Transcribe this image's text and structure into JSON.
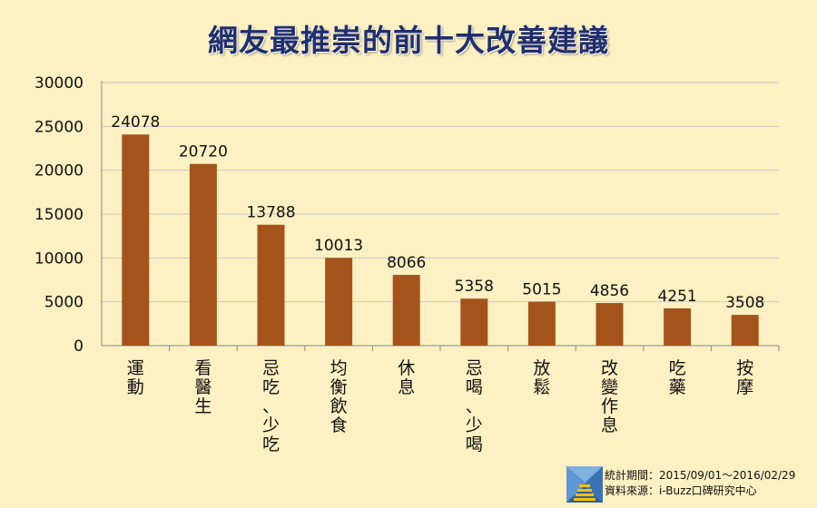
{
  "chart_data": {
    "type": "bar",
    "title": "網友最推崇的前十大改善建議",
    "categories": [
      "運動",
      "看醫生",
      "忌吃、少吃",
      "均衡飲食",
      "休息",
      "忌喝、少喝",
      "放鬆",
      "改變作息",
      "吃藥",
      "按摩"
    ],
    "values": [
      24078,
      20720,
      13788,
      10013,
      8066,
      5358,
      5015,
      4856,
      4251,
      3508
    ],
    "ylim": [
      0,
      30000
    ],
    "yticks": [
      0,
      5000,
      10000,
      15000,
      20000,
      25000,
      30000
    ],
    "grid": true,
    "bar_color": "#a4541a",
    "grid_color": "#c8c8c8"
  },
  "footer": {
    "period": "統計期間：2015/09/01～2016/02/29",
    "source": "資料來源：i-Buzz口碑研究中心"
  },
  "logo_icon": "ibuzz-logo-icon"
}
